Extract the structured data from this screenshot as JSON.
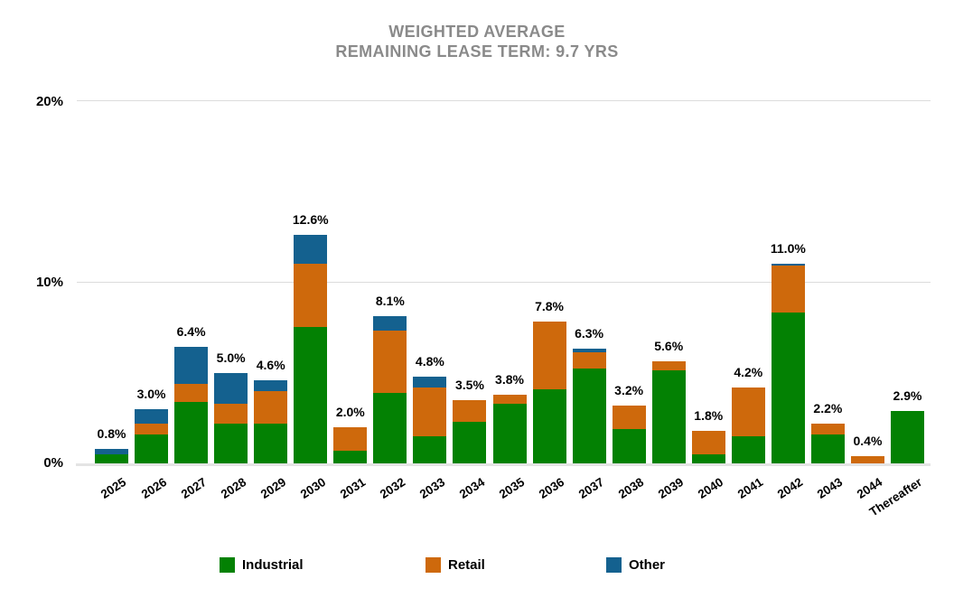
{
  "title": {
    "line1": "WEIGHTED AVERAGE",
    "line2": "REMAINING LEASE TERM: 9.7 YRS",
    "color": "#8a8a8a"
  },
  "chart_data": {
    "type": "bar",
    "stacked": true,
    "title": "WEIGHTED AVERAGE REMAINING LEASE TERM: 9.7 YRS",
    "categories": [
      "2025",
      "2026",
      "2027",
      "2028",
      "2029",
      "2030",
      "2031",
      "2032",
      "2033",
      "2034",
      "2035",
      "2036",
      "2037",
      "2038",
      "2039",
      "2040",
      "2041",
      "2042",
      "2043",
      "2044",
      "Thereafter"
    ],
    "series": [
      {
        "name": "Industrial",
        "color": "#038103",
        "values": [
          0.5,
          1.6,
          3.4,
          2.2,
          2.2,
          7.5,
          0.7,
          3.9,
          1.5,
          2.3,
          3.3,
          4.1,
          5.2,
          1.9,
          5.1,
          0.5,
          1.5,
          8.3,
          1.6,
          0.0,
          2.9
        ]
      },
      {
        "name": "Retail",
        "color": "#ce690c",
        "values": [
          0.0,
          0.6,
          1.0,
          1.1,
          1.8,
          3.5,
          1.3,
          3.4,
          2.7,
          1.2,
          0.5,
          3.7,
          0.9,
          1.3,
          0.5,
          1.3,
          2.7,
          2.6,
          0.6,
          0.4,
          0.0
        ]
      },
      {
        "name": "Other",
        "color": "#14618f",
        "values": [
          0.3,
          0.8,
          2.0,
          1.7,
          0.6,
          1.6,
          0.0,
          0.8,
          0.6,
          0.0,
          0.0,
          0.0,
          0.2,
          0.0,
          0.0,
          0.0,
          0.0,
          0.1,
          0.0,
          0.0,
          0.0
        ]
      }
    ],
    "total_labels": [
      "0.8%",
      "3.0%",
      "6.4%",
      "5.0%",
      "4.6%",
      "12.6%",
      "2.0%",
      "8.1%",
      "4.8%",
      "3.5%",
      "3.8%",
      "7.8%",
      "6.3%",
      "3.2%",
      "5.6%",
      "1.8%",
      "4.2%",
      "11.0%",
      "2.2%",
      "0.4%",
      "2.9%"
    ],
    "yticks": {
      "t20": "20%",
      "t10": "10%",
      "t0": "0%"
    },
    "ylim": [
      0,
      20
    ],
    "gridlines_pct": [
      10,
      20
    ],
    "grid_on": true,
    "xlabel": "",
    "ylabel": "",
    "legend_position": "bottom"
  },
  "legend": {
    "industrial": "Industrial",
    "retail": "Retail",
    "other": "Other"
  }
}
